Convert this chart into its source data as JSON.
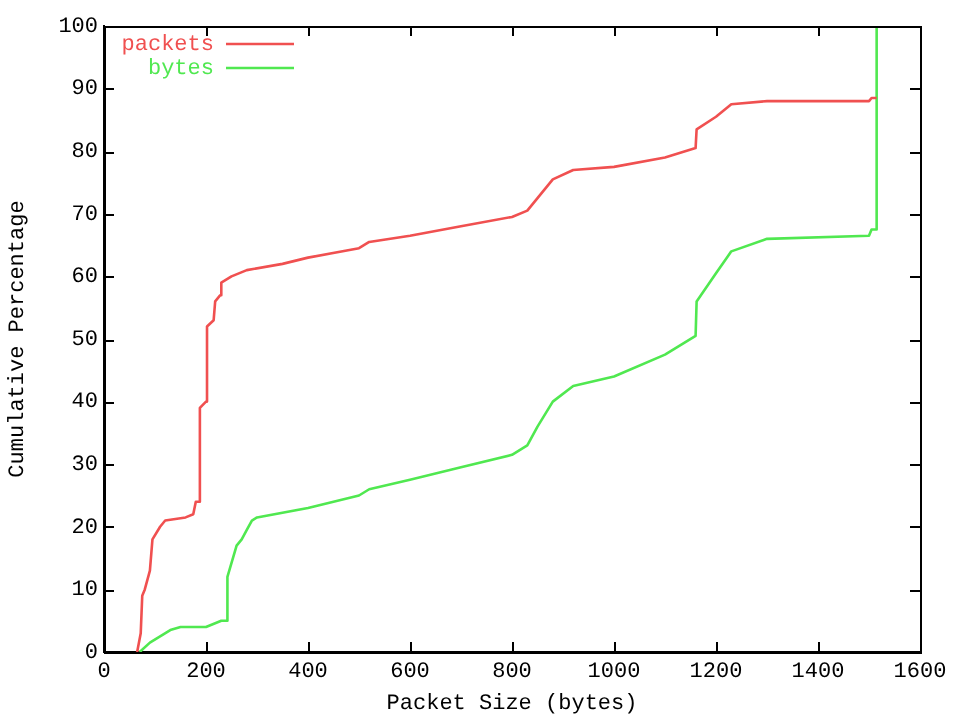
{
  "chart_data": {
    "type": "line",
    "xlabel": "Packet Size (bytes)",
    "ylabel": "Cumulative Percentage",
    "xlim": [
      0,
      1600
    ],
    "xticks": [
      0,
      200,
      400,
      600,
      800,
      1000,
      1200,
      1400,
      1600
    ],
    "ylim": [
      0,
      100
    ],
    "yticks": [
      0,
      10,
      20,
      30,
      40,
      50,
      60,
      70,
      80,
      90,
      100
    ],
    "grid": false,
    "legend": "top left",
    "marker": "none",
    "line_style": "solid",
    "series": [
      {
        "name": "packets",
        "color": "#f05050",
        "x": [
          65,
          72,
          75,
          80,
          90,
          95,
          110,
          120,
          160,
          175,
          180,
          187,
          188,
          200,
          202,
          215,
          218,
          228,
          230,
          250,
          280,
          350,
          400,
          500,
          520,
          600,
          700,
          800,
          830,
          850,
          880,
          920,
          1000,
          1100,
          1160,
          1162,
          1200,
          1230,
          1300,
          1500,
          1505,
          1515
        ],
        "values": [
          0,
          3,
          9,
          10,
          13,
          18,
          20,
          21,
          21.5,
          22,
          24,
          24,
          39,
          40,
          52,
          53,
          56,
          57,
          59,
          60,
          61,
          62,
          63,
          64.5,
          65.5,
          66.5,
          68,
          69.5,
          70.5,
          72.5,
          75.5,
          77,
          77.5,
          79,
          80.5,
          83.5,
          85.5,
          87.5,
          88,
          88,
          88.5,
          88.5
        ]
      },
      {
        "name": "bytes",
        "color": "#50e850",
        "x": [
          70,
          90,
          110,
          130,
          150,
          200,
          230,
          240,
          242,
          260,
          270,
          280,
          290,
          300,
          400,
          500,
          520,
          600,
          700,
          800,
          830,
          850,
          880,
          920,
          1000,
          1100,
          1160,
          1162,
          1200,
          1230,
          1300,
          1500,
          1505,
          1515,
          1515
        ],
        "values": [
          0,
          1.5,
          2.5,
          3.5,
          4,
          4,
          5,
          5,
          12,
          17,
          18,
          19.5,
          21,
          21.5,
          23,
          25,
          26,
          27.5,
          29.5,
          31.5,
          33,
          36,
          40,
          42.5,
          44,
          47.5,
          50.5,
          56,
          60.5,
          64,
          66,
          66.5,
          67.5,
          67.5,
          100
        ]
      }
    ]
  }
}
